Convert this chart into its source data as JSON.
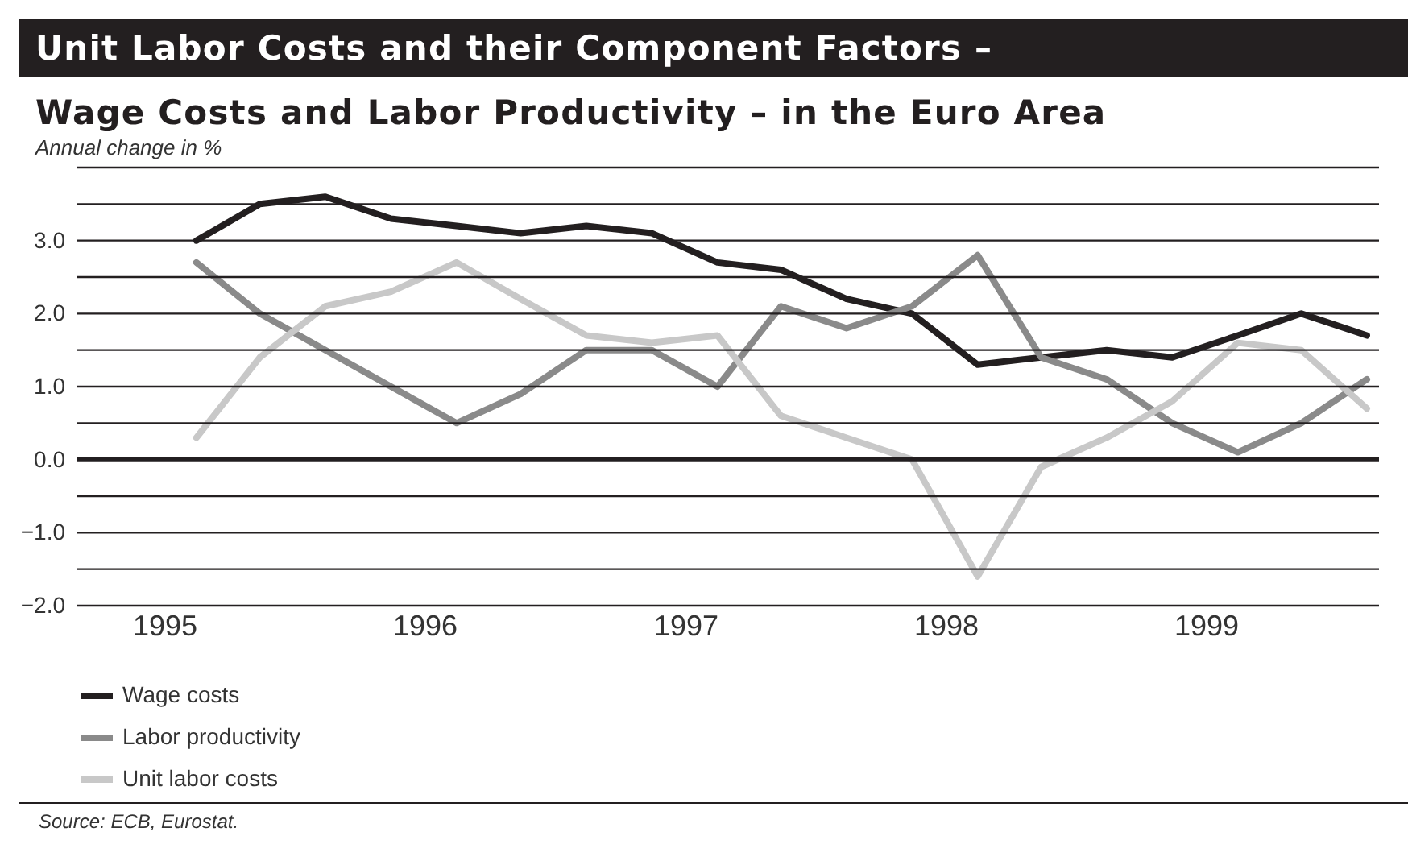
{
  "chart_data": {
    "type": "line",
    "title": "Unit Labor Costs and their Component Factors –",
    "subtitle": "Wage Costs and Labor Productivity – in the Euro Area",
    "ylabel": "Annual change in %",
    "x": [
      "1995-02-15",
      "1995-05-15",
      "1995-08-15",
      "1995-11-15",
      "1996-02-15",
      "1996-05-15",
      "1996-08-15",
      "1996-11-15",
      "1997-02-15",
      "1997-05-15",
      "1997-08-15",
      "1997-11-15",
      "1998-02-15",
      "1998-05-15",
      "1998-08-15",
      "1998-11-15",
      "1999-02-15",
      "1999-05-15",
      "1999-08-15"
    ],
    "series": [
      {
        "name": "Wage costs",
        "color": "#231f20",
        "values": [
          3.0,
          3.5,
          3.6,
          3.3,
          3.2,
          3.1,
          3.2,
          3.1,
          2.7,
          2.6,
          2.2,
          2.0,
          1.3,
          1.4,
          1.5,
          1.4,
          1.7,
          2.0,
          1.7
        ]
      },
      {
        "name": "Labor productivity",
        "color": "#8a8a8a",
        "values": [
          2.7,
          2.0,
          1.5,
          1.0,
          0.5,
          0.9,
          1.5,
          1.5,
          1.0,
          2.1,
          1.8,
          2.1,
          2.8,
          1.4,
          1.1,
          0.5,
          0.1,
          0.5,
          1.1
        ]
      },
      {
        "name": "Unit labor costs",
        "color": "#c8c8c8",
        "values": [
          0.3,
          1.4,
          2.1,
          2.3,
          2.7,
          2.2,
          1.7,
          1.6,
          1.7,
          0.6,
          0.3,
          0.0,
          -1.6,
          -0.1,
          0.3,
          0.8,
          1.6,
          1.5,
          0.7
        ]
      }
    ],
    "xlim": [
      "1994-09-01",
      "1999-09-01"
    ],
    "xticks": [
      {
        "value": "1995-01-01",
        "label": "1995"
      },
      {
        "value": "1996-01-01",
        "label": "1996"
      },
      {
        "value": "1997-01-01",
        "label": "1997"
      },
      {
        "value": "1998-01-01",
        "label": "1998"
      },
      {
        "value": "1999-01-01",
        "label": "1999"
      }
    ],
    "ylim": [
      -2,
      4
    ],
    "yticks": [
      {
        "value": -2,
        "label": "−2.0"
      },
      {
        "value": -1.5,
        "label": null
      },
      {
        "value": -1,
        "label": "−1.0"
      },
      {
        "value": -0.5,
        "label": null
      },
      {
        "value": 0,
        "label": "0.0"
      },
      {
        "value": 0.5,
        "label": null
      },
      {
        "value": 1,
        "label": "1.0"
      },
      {
        "value": 1.5,
        "label": null
      },
      {
        "value": 2,
        "label": "2.0"
      },
      {
        "value": 2.5,
        "label": null
      },
      {
        "value": 3,
        "label": "3.0"
      },
      {
        "value": 3.5,
        "label": null
      },
      {
        "value": 4,
        "label": null
      }
    ],
    "ref_lines": [
      {
        "axis": "y",
        "value": 0
      }
    ],
    "grid": "y",
    "legend": "bottom",
    "marker": "none",
    "line_style": "solid",
    "annotations": [
      "Source: ECB, Eurostat."
    ]
  }
}
